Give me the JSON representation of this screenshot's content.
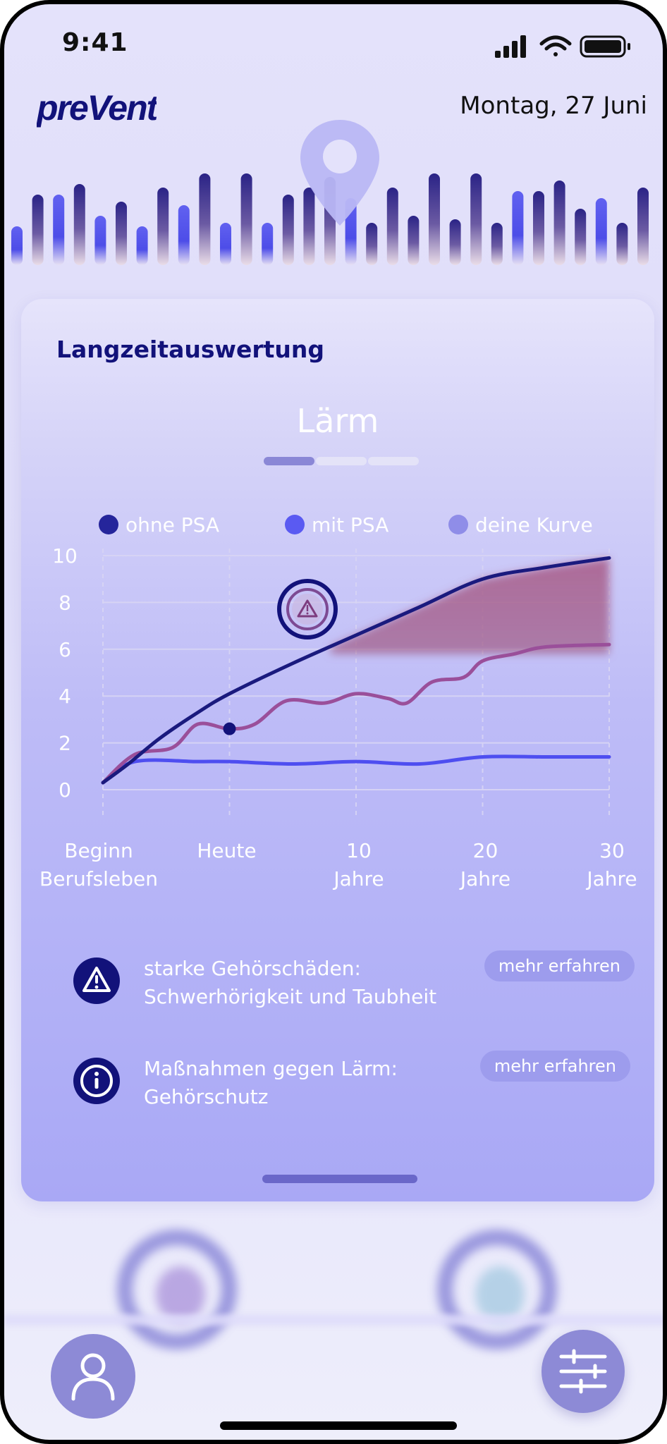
{
  "status_bar": {
    "time": "9:41"
  },
  "header": {
    "logo_text": "preVent",
    "date": "Montag, 27 Juni"
  },
  "card": {
    "title": "Langzeitauswertung",
    "chart_title": "Lärm",
    "pager_active": 1,
    "pager_total": 3
  },
  "chart_data": {
    "type": "line",
    "x_labels": [
      {
        "line1": "Beginn",
        "line2": "Berufsleben"
      },
      {
        "line1": "Heute",
        "line2": ""
      },
      {
        "line1": "10",
        "line2": "Jahre"
      },
      {
        "line1": "20",
        "line2": "Jahre"
      },
      {
        "line1": "30",
        "line2": "Jahre"
      }
    ],
    "x_range": [
      0,
      4
    ],
    "y_range": [
      0,
      10
    ],
    "y_ticks": [
      0,
      2,
      4,
      6,
      8,
      10
    ],
    "grid": true,
    "legend_position": "top",
    "series": [
      {
        "name": "ohne PSA",
        "color": "#1a1a7e",
        "points": [
          [
            0,
            0.3
          ],
          [
            0.2,
            1.1
          ],
          [
            0.45,
            2.2
          ],
          [
            0.75,
            3.3
          ],
          [
            1,
            4.1
          ],
          [
            1.5,
            5.4
          ],
          [
            2,
            6.6
          ],
          [
            2.5,
            7.8
          ],
          [
            3,
            9.0
          ],
          [
            3.5,
            9.5
          ],
          [
            4,
            9.9
          ]
        ]
      },
      {
        "name": "mit PSA",
        "color": "#4e4ef0",
        "points": [
          [
            0,
            0.3
          ],
          [
            0.25,
            1.2
          ],
          [
            0.75,
            1.2
          ],
          [
            1,
            1.2
          ],
          [
            1.5,
            1.1
          ],
          [
            2,
            1.2
          ],
          [
            2.5,
            1.1
          ],
          [
            3,
            1.4
          ],
          [
            3.5,
            1.4
          ],
          [
            4,
            1.4
          ]
        ]
      },
      {
        "name": "deine Kurve",
        "color": "#9a4f9a",
        "points": [
          [
            0,
            0.3
          ],
          [
            0.25,
            1.5
          ],
          [
            0.55,
            1.8
          ],
          [
            0.75,
            2.8
          ],
          [
            1,
            2.6
          ],
          [
            1.2,
            2.8
          ],
          [
            1.45,
            3.8
          ],
          [
            1.75,
            3.7
          ],
          [
            2,
            4.1
          ],
          [
            2.25,
            3.9
          ],
          [
            2.4,
            3.7
          ],
          [
            2.6,
            4.6
          ],
          [
            2.85,
            4.8
          ],
          [
            3,
            5.5
          ],
          [
            3.25,
            5.8
          ],
          [
            3.5,
            6.1
          ],
          [
            4,
            6.2
          ]
        ]
      }
    ],
    "legend_colors": [
      "#25259b",
      "#5a5af2",
      "#8f8de8"
    ],
    "today_marker": {
      "x": 1,
      "y": 2.6
    },
    "risk_zone": {
      "x_from": 1.8,
      "x_to": 4,
      "lower": 5.8
    }
  },
  "info_items": [
    {
      "icon": "warning-icon",
      "title": "starke Gehörschäden:",
      "subtitle": "Schwerhörigkeit und Taubheit",
      "button": "mehr erfahren"
    },
    {
      "icon": "info-icon",
      "title": "Maßnahmen gegen Lärm:",
      "subtitle": "Gehörschutz",
      "button": "mehr erfahren"
    }
  ],
  "colors": {
    "accent": "#12127a",
    "primary": "#4e4ef0",
    "card_bg": "#b4b3f7"
  }
}
